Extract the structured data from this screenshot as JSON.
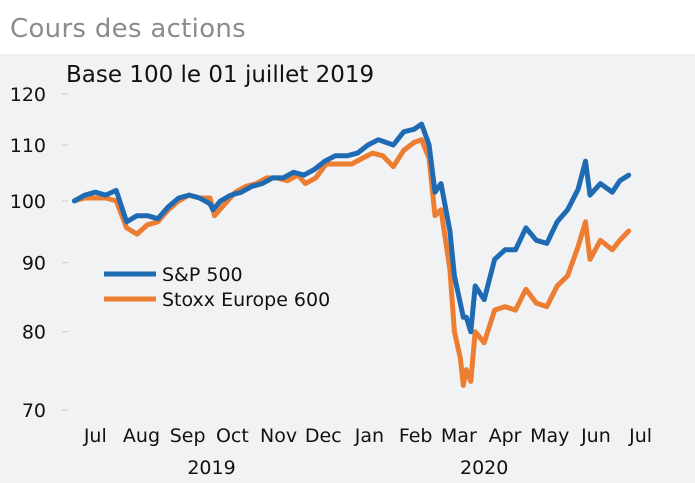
{
  "header": {
    "title": "Cours des actions"
  },
  "chart_data": {
    "type": "line",
    "title": "Base 100 le 01 juillet 2019",
    "xlabel": "",
    "ylabel": "",
    "yscale": "log",
    "ylim": [
      70,
      120
    ],
    "yticks": [
      70,
      80,
      90,
      100,
      110,
      120
    ],
    "xlim": [
      "2019-06-24",
      "2020-07-28"
    ],
    "xticks": [
      {
        "label": "Jul",
        "date": "2019-07-15"
      },
      {
        "label": "Aug",
        "date": "2019-08-15"
      },
      {
        "label": "Sep",
        "date": "2019-09-15"
      },
      {
        "label": "Oct",
        "date": "2019-10-15"
      },
      {
        "label": "Nov",
        "date": "2019-11-15"
      },
      {
        "label": "Dec",
        "date": "2019-12-15"
      },
      {
        "label": "Jan",
        "date": "2020-01-15"
      },
      {
        "label": "Feb",
        "date": "2020-02-15"
      },
      {
        "label": "Mar",
        "date": "2020-03-15"
      },
      {
        "label": "Apr",
        "date": "2020-04-15"
      },
      {
        "label": "May",
        "date": "2020-05-15"
      },
      {
        "label": "Jun",
        "date": "2020-06-15"
      },
      {
        "label": "Jul",
        "date": "2020-07-15"
      }
    ],
    "year_labels": [
      {
        "label": "2019",
        "date": "2019-10-01"
      },
      {
        "label": "2020",
        "date": "2020-04-01"
      }
    ],
    "grid": false,
    "legend": "center-left",
    "series": [
      {
        "name": "S&P 500",
        "color": "#1f6bb3",
        "points": [
          [
            "2019-07-01",
            100.0
          ],
          [
            "2019-07-08",
            101.0
          ],
          [
            "2019-07-15",
            101.5
          ],
          [
            "2019-07-22",
            101.0
          ],
          [
            "2019-07-29",
            101.8
          ],
          [
            "2019-08-05",
            96.5
          ],
          [
            "2019-08-12",
            97.5
          ],
          [
            "2019-08-19",
            97.5
          ],
          [
            "2019-08-26",
            97.0
          ],
          [
            "2019-09-02",
            99.0
          ],
          [
            "2019-09-09",
            100.5
          ],
          [
            "2019-09-16",
            101.0
          ],
          [
            "2019-09-23",
            100.5
          ],
          [
            "2019-09-30",
            99.5
          ],
          [
            "2019-10-02",
            98.5
          ],
          [
            "2019-10-07",
            100.0
          ],
          [
            "2019-10-14",
            101.0
          ],
          [
            "2019-10-21",
            101.5
          ],
          [
            "2019-10-28",
            102.5
          ],
          [
            "2019-11-04",
            103.0
          ],
          [
            "2019-11-11",
            104.0
          ],
          [
            "2019-11-18",
            104.0
          ],
          [
            "2019-11-25",
            105.0
          ],
          [
            "2019-12-02",
            104.5
          ],
          [
            "2019-12-09",
            105.5
          ],
          [
            "2019-12-16",
            107.0
          ],
          [
            "2019-12-23",
            108.0
          ],
          [
            "2019-12-31",
            108.0
          ],
          [
            "2020-01-07",
            108.5
          ],
          [
            "2020-01-14",
            110.0
          ],
          [
            "2020-01-21",
            111.0
          ],
          [
            "2020-01-31",
            110.0
          ],
          [
            "2020-02-07",
            112.5
          ],
          [
            "2020-02-14",
            113.0
          ],
          [
            "2020-02-19",
            114.0
          ],
          [
            "2020-02-24",
            110.0
          ],
          [
            "2020-02-28",
            101.5
          ],
          [
            "2020-03-03",
            103.0
          ],
          [
            "2020-03-09",
            95.0
          ],
          [
            "2020-03-12",
            88.0
          ],
          [
            "2020-03-16",
            84.0
          ],
          [
            "2020-03-18",
            82.0
          ],
          [
            "2020-03-20",
            82.0
          ],
          [
            "2020-03-23",
            80.0
          ],
          [
            "2020-03-26",
            86.5
          ],
          [
            "2020-04-01",
            84.5
          ],
          [
            "2020-04-08",
            90.5
          ],
          [
            "2020-04-15",
            92.0
          ],
          [
            "2020-04-22",
            92.0
          ],
          [
            "2020-04-29",
            95.5
          ],
          [
            "2020-05-06",
            93.5
          ],
          [
            "2020-05-13",
            93.0
          ],
          [
            "2020-05-20",
            96.5
          ],
          [
            "2020-05-27",
            98.5
          ],
          [
            "2020-06-03",
            102.0
          ],
          [
            "2020-06-08",
            107.0
          ],
          [
            "2020-06-11",
            101.0
          ],
          [
            "2020-06-18",
            103.0
          ],
          [
            "2020-06-26",
            101.5
          ],
          [
            "2020-07-01",
            103.5
          ],
          [
            "2020-07-07",
            104.5
          ]
        ]
      },
      {
        "name": "Stoxx Europe 600",
        "color": "#ed7d31",
        "points": [
          [
            "2019-07-01",
            100.0
          ],
          [
            "2019-07-08",
            100.5
          ],
          [
            "2019-07-15",
            100.5
          ],
          [
            "2019-07-22",
            100.5
          ],
          [
            "2019-07-29",
            100.0
          ],
          [
            "2019-08-05",
            95.5
          ],
          [
            "2019-08-12",
            94.5
          ],
          [
            "2019-08-19",
            96.0
          ],
          [
            "2019-08-26",
            96.5
          ],
          [
            "2019-09-02",
            98.5
          ],
          [
            "2019-09-09",
            100.0
          ],
          [
            "2019-09-16",
            101.0
          ],
          [
            "2019-09-23",
            100.5
          ],
          [
            "2019-09-30",
            100.5
          ],
          [
            "2019-10-03",
            97.5
          ],
          [
            "2019-10-10",
            99.5
          ],
          [
            "2019-10-17",
            101.5
          ],
          [
            "2019-10-24",
            102.5
          ],
          [
            "2019-10-31",
            103.0
          ],
          [
            "2019-11-07",
            104.0
          ],
          [
            "2019-11-14",
            104.0
          ],
          [
            "2019-11-21",
            103.5
          ],
          [
            "2019-11-28",
            104.5
          ],
          [
            "2019-12-03",
            103.0
          ],
          [
            "2019-12-10",
            104.0
          ],
          [
            "2019-12-17",
            106.5
          ],
          [
            "2019-12-24",
            106.5
          ],
          [
            "2020-01-03",
            106.5
          ],
          [
            "2020-01-10",
            107.5
          ],
          [
            "2020-01-17",
            108.5
          ],
          [
            "2020-01-24",
            108.0
          ],
          [
            "2020-01-31",
            106.0
          ],
          [
            "2020-02-07",
            109.0
          ],
          [
            "2020-02-14",
            110.5
          ],
          [
            "2020-02-19",
            111.0
          ],
          [
            "2020-02-24",
            107.5
          ],
          [
            "2020-02-28",
            97.5
          ],
          [
            "2020-03-03",
            98.5
          ],
          [
            "2020-03-09",
            89.0
          ],
          [
            "2020-03-12",
            80.0
          ],
          [
            "2020-03-16",
            76.5
          ],
          [
            "2020-03-18",
            73.0
          ],
          [
            "2020-03-20",
            75.0
          ],
          [
            "2020-03-23",
            73.5
          ],
          [
            "2020-03-26",
            80.0
          ],
          [
            "2020-04-01",
            78.5
          ],
          [
            "2020-04-08",
            83.0
          ],
          [
            "2020-04-15",
            83.5
          ],
          [
            "2020-04-22",
            83.0
          ],
          [
            "2020-04-29",
            86.0
          ],
          [
            "2020-05-06",
            84.0
          ],
          [
            "2020-05-13",
            83.5
          ],
          [
            "2020-05-20",
            86.5
          ],
          [
            "2020-05-27",
            88.0
          ],
          [
            "2020-06-03",
            92.5
          ],
          [
            "2020-06-08",
            96.5
          ],
          [
            "2020-06-11",
            90.5
          ],
          [
            "2020-06-18",
            93.5
          ],
          [
            "2020-06-26",
            92.0
          ],
          [
            "2020-07-01",
            93.5
          ],
          [
            "2020-07-07",
            95.0
          ]
        ]
      }
    ]
  }
}
